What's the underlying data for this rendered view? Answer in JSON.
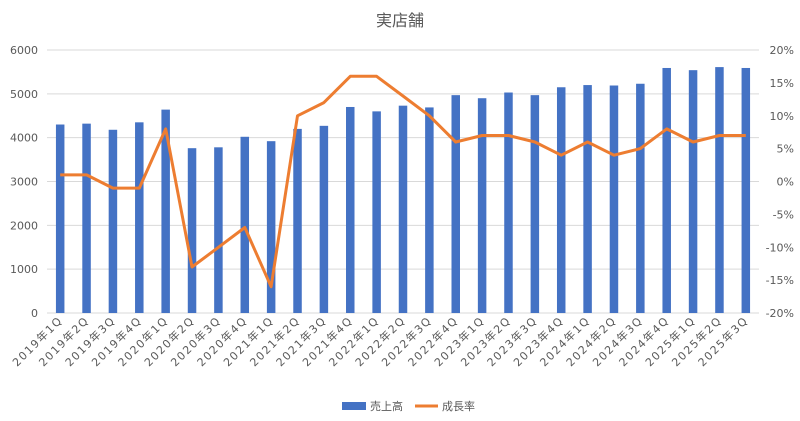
{
  "chart_data": {
    "type": "bar+line",
    "title": "実店舗",
    "categories": [
      "2019年1Q",
      "2019年2Q",
      "2019年3Q",
      "2019年4Q",
      "2020年1Q",
      "2020年2Q",
      "2020年3Q",
      "2020年4Q",
      "2021年1Q",
      "2021年2Q",
      "2021年3Q",
      "2021年4Q",
      "2022年1Q",
      "2022年2Q",
      "2022年3Q",
      "2022年4Q",
      "2023年1Q",
      "2023年2Q",
      "2023年3Q",
      "2023年4Q",
      "2024年1Q",
      "2024年2Q",
      "2024年3Q",
      "2024年4Q",
      "2025年1Q",
      "2025年2Q",
      "2025年3Q"
    ],
    "series": [
      {
        "name": "売上高",
        "type": "bar",
        "axis": "left",
        "color": "#4472C4",
        "values": [
          4300,
          4320,
          4180,
          4350,
          4640,
          3760,
          3780,
          4020,
          3920,
          4200,
          4270,
          4700,
          4600,
          4730,
          4690,
          4970,
          4900,
          5030,
          4970,
          5150,
          5200,
          5190,
          5230,
          5590,
          5540,
          5610,
          5590
        ]
      },
      {
        "name": "成長率",
        "type": "line",
        "axis": "right",
        "color": "#ED7D31",
        "values": [
          1,
          1,
          -1,
          -1,
          8,
          -13,
          -10,
          -7,
          -16,
          10,
          12,
          16,
          16,
          13,
          10,
          6,
          7,
          7,
          6,
          4,
          6,
          4,
          5,
          8,
          6,
          7,
          7
        ]
      }
    ],
    "y_left": {
      "min": 0,
      "max": 6000,
      "ticks": [
        "0",
        "1000",
        "2000",
        "3000",
        "4000",
        "5000",
        "6000"
      ]
    },
    "y_right": {
      "min": -20,
      "max": 20,
      "ticks": [
        "-20%",
        "-15%",
        "-10%",
        "-5%",
        "0%",
        "5%",
        "10%",
        "15%",
        "20%"
      ]
    },
    "grid": true,
    "legend": "bottom"
  }
}
